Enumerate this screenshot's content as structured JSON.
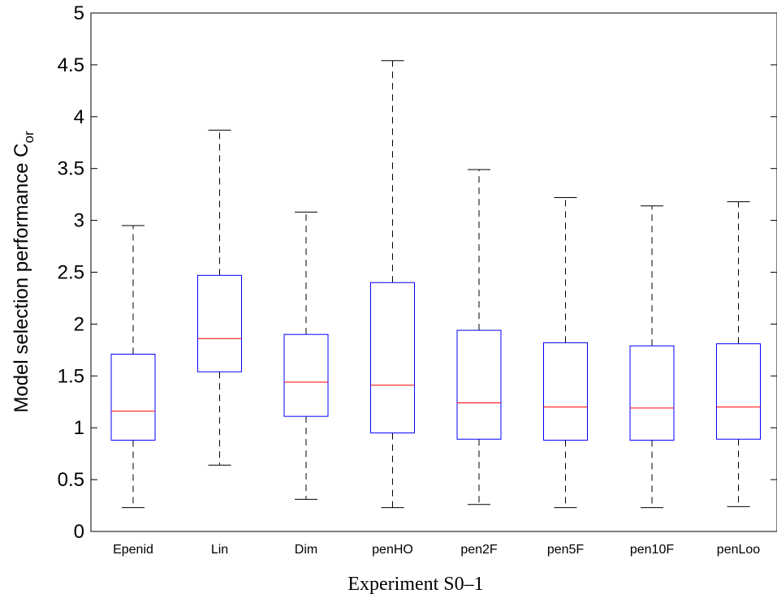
{
  "chart_data": {
    "type": "box",
    "categories": [
      "Epenid",
      "Lin",
      "Dim",
      "penHO",
      "pen2F",
      "pen5F",
      "pen10F",
      "penLoo"
    ],
    "boxes": [
      {
        "min": 0.23,
        "q1": 0.88,
        "median": 1.16,
        "q3": 1.71,
        "max": 2.95
      },
      {
        "min": 0.64,
        "q1": 1.54,
        "median": 1.86,
        "q3": 2.47,
        "max": 3.87
      },
      {
        "min": 0.31,
        "q1": 1.11,
        "median": 1.44,
        "q3": 1.9,
        "max": 3.08
      },
      {
        "min": 0.23,
        "q1": 0.95,
        "median": 1.41,
        "q3": 2.4,
        "max": 4.54
      },
      {
        "min": 0.26,
        "q1": 0.89,
        "median": 1.24,
        "q3": 1.94,
        "max": 3.49
      },
      {
        "min": 0.23,
        "q1": 0.88,
        "median": 1.2,
        "q3": 1.82,
        "max": 3.22
      },
      {
        "min": 0.23,
        "q1": 0.88,
        "median": 1.19,
        "q3": 1.79,
        "max": 3.14
      },
      {
        "min": 0.24,
        "q1": 0.89,
        "median": 1.2,
        "q3": 1.81,
        "max": 3.18
      }
    ],
    "ylim": [
      0,
      5
    ],
    "yticks": [
      0,
      0.5,
      1,
      1.5,
      2,
      2.5,
      3,
      3.5,
      4,
      4.5,
      5
    ],
    "ytick_labels": [
      "0",
      "0.5",
      "1",
      "1.5",
      "2",
      "2.5",
      "3",
      "3.5",
      "4",
      "4.5",
      "5"
    ],
    "ylabel": "Model selection performance C",
    "ylabel_subscript": "or",
    "xlabel": "Experiment S0–1",
    "grid": false,
    "colors": {
      "box": "#0000ff",
      "median": "#ff0000",
      "whisker": "#000000",
      "axis": "#000000"
    }
  }
}
